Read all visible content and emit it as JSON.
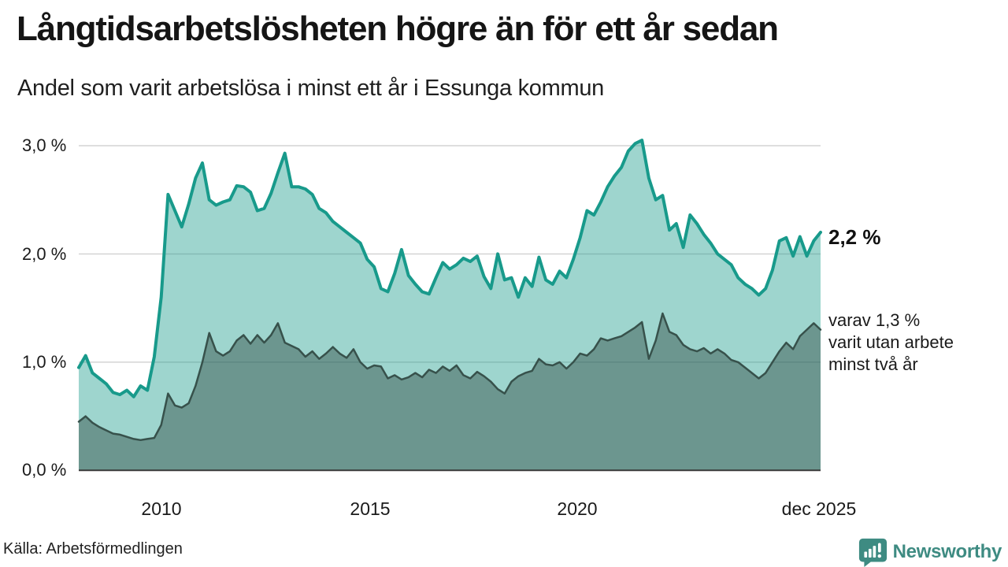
{
  "header": {
    "title": "Långtidsarbetslösheten högre än för ett år sedan",
    "subtitle": "Andel som varit arbetslösa i minst ett år i Essunga kommun"
  },
  "chart_data": {
    "type": "area",
    "title": "Långtidsarbetslösheten högre än för ett år sedan",
    "subtitle": "Andel som varit arbetslösa i minst ett år i Essunga kommun",
    "unit": "%",
    "x_start": 2008.0,
    "x_end": 2025.92,
    "ylim": [
      0,
      3.1
    ],
    "grid": "horizontal",
    "y_ticks": [
      {
        "v": 3.0,
        "label": "3,0 %"
      },
      {
        "v": 2.0,
        "label": "2,0 %"
      },
      {
        "v": 1.0,
        "label": "1,0 %"
      },
      {
        "v": 0.0,
        "label": "0,0 %"
      }
    ],
    "x_ticks": [
      {
        "x": 2010,
        "label": "2010"
      },
      {
        "x": 2015,
        "label": "2015"
      },
      {
        "x": 2020,
        "label": "2020"
      },
      {
        "x": 2025.9,
        "label": "dec 2025"
      }
    ],
    "series": [
      {
        "name": "arbetslösa minst ett år",
        "latest_value": 2.2,
        "color": "#189a8b",
        "fill": "rgba(24,154,139,0.42)",
        "stroke_width": 4,
        "values": [
          0.95,
          1.06,
          0.9,
          0.85,
          0.8,
          0.72,
          0.7,
          0.74,
          0.68,
          0.78,
          0.74,
          1.05,
          1.6,
          2.55,
          2.4,
          2.25,
          2.46,
          2.7,
          2.84,
          2.5,
          2.45,
          2.48,
          2.5,
          2.63,
          2.62,
          2.57,
          2.4,
          2.42,
          2.56,
          2.75,
          2.93,
          2.62,
          2.62,
          2.6,
          2.55,
          2.42,
          2.38,
          2.3,
          2.25,
          2.2,
          2.15,
          2.1,
          1.95,
          1.88,
          1.68,
          1.65,
          1.82,
          2.04,
          1.8,
          1.72,
          1.65,
          1.63,
          1.78,
          1.92,
          1.86,
          1.9,
          1.96,
          1.93,
          1.98,
          1.79,
          1.68,
          2.0,
          1.76,
          1.78,
          1.6,
          1.78,
          1.7,
          1.97,
          1.76,
          1.72,
          1.84,
          1.78,
          1.95,
          2.15,
          2.4,
          2.36,
          2.48,
          2.62,
          2.72,
          2.8,
          2.95,
          3.02,
          3.05,
          2.7,
          2.5,
          2.54,
          2.22,
          2.28,
          2.06,
          2.36,
          2.28,
          2.18,
          2.1,
          2.0,
          1.95,
          1.9,
          1.78,
          1.72,
          1.68,
          1.62,
          1.68,
          1.85,
          2.12,
          2.15,
          1.98,
          2.16,
          1.98,
          2.12,
          2.2
        ]
      },
      {
        "name": "varav arbetslösa minst två år",
        "latest_value": 1.3,
        "color": "#37514b",
        "fill": "rgba(55,81,75,0.48)",
        "stroke_width": 2.5,
        "values": [
          0.45,
          0.5,
          0.44,
          0.4,
          0.37,
          0.34,
          0.33,
          0.31,
          0.29,
          0.28,
          0.29,
          0.3,
          0.42,
          0.71,
          0.6,
          0.58,
          0.62,
          0.78,
          1.0,
          1.27,
          1.1,
          1.06,
          1.1,
          1.2,
          1.25,
          1.17,
          1.25,
          1.18,
          1.25,
          1.36,
          1.18,
          1.15,
          1.12,
          1.05,
          1.1,
          1.03,
          1.08,
          1.14,
          1.08,
          1.04,
          1.12,
          1.0,
          0.94,
          0.97,
          0.96,
          0.85,
          0.88,
          0.84,
          0.86,
          0.9,
          0.86,
          0.93,
          0.9,
          0.96,
          0.92,
          0.97,
          0.88,
          0.85,
          0.91,
          0.87,
          0.82,
          0.75,
          0.71,
          0.82,
          0.87,
          0.9,
          0.92,
          1.03,
          0.98,
          0.97,
          1.0,
          0.94,
          1.0,
          1.08,
          1.06,
          1.12,
          1.22,
          1.2,
          1.22,
          1.24,
          1.28,
          1.32,
          1.37,
          1.03,
          1.2,
          1.45,
          1.28,
          1.25,
          1.16,
          1.12,
          1.1,
          1.13,
          1.08,
          1.12,
          1.08,
          1.02,
          1.0,
          0.95,
          0.9,
          0.85,
          0.9,
          1.0,
          1.1,
          1.18,
          1.12,
          1.24,
          1.3,
          1.36,
          1.3
        ]
      }
    ],
    "annotations": {
      "latest_total": "2,2 %",
      "note_lines": [
        "varav 1,3 %",
        "varit utan arbete",
        "minst två år"
      ]
    },
    "gridline_color": "#d4d4d4",
    "baseline_color": "#3a3a3a",
    "legend_position": "none"
  },
  "footer": {
    "source": "Källa: Arbetsförmedlingen",
    "brand": "Newsworthy",
    "brand_color": "#3e8b82"
  }
}
